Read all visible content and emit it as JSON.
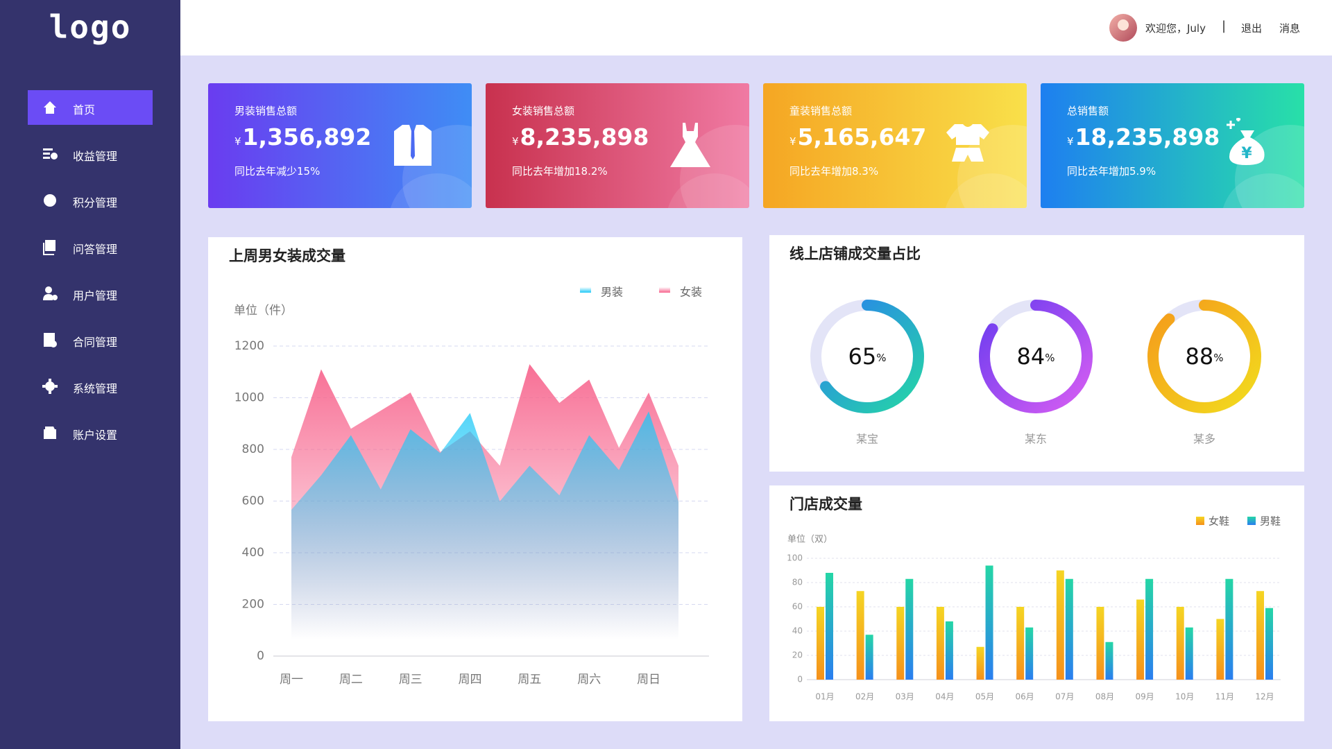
{
  "logo": "logo",
  "nav": [
    "首页",
    "收益管理",
    "积分管理",
    "问答管理",
    "用户管理",
    "合同管理",
    "系统管理",
    "账户设置"
  ],
  "nav_active": 0,
  "header": {
    "welcome": "欢迎您，July",
    "logout": "退出",
    "messages": "消息"
  },
  "cards": [
    {
      "title": "男装销售总额",
      "currency": "¥",
      "amount": "1,356,892",
      "note": "同比去年减少15%"
    },
    {
      "title": "女装销售总额",
      "currency": "¥",
      "amount": "8,235,898",
      "note": "同比去年增加18.2%"
    },
    {
      "title": "童装销售总额",
      "currency": "¥",
      "amount": "5,165,647",
      "note": "同比去年增加8.3%"
    },
    {
      "title": "总销售额",
      "currency": "¥",
      "amount": "18,235,898",
      "note": "同比去年增加5.9%"
    }
  ],
  "chart_data": [
    {
      "type": "area",
      "title": "上周男女装成交量",
      "unit_label": "单位（件）",
      "categories": [
        "周一",
        null,
        "周二",
        null,
        "周三",
        null,
        "周四",
        null,
        "周五",
        null,
        "周六",
        null,
        "周日",
        null
      ],
      "series": [
        {
          "name": "男装",
          "color": "#1ec8f7",
          "values": [
            566,
            700,
            855,
            645,
            878,
            786,
            941,
            599,
            737,
            622,
            855,
            720,
            947,
            599
          ]
        },
        {
          "name": "女装",
          "color": "#f7638c",
          "values": [
            770,
            1110,
            880,
            950,
            1020,
            790,
            870,
            737,
            1130,
            980,
            1070,
            806,
            1020,
            737
          ]
        }
      ],
      "ylim": [
        0,
        1200
      ],
      "yticks": [
        0,
        200,
        400,
        600,
        800,
        1000,
        1200
      ],
      "grid": true
    },
    {
      "type": "donut",
      "title": "线上店铺成交量占比",
      "categories": [
        "某宝",
        "某东",
        "某多"
      ],
      "values": [
        65,
        84,
        88
      ],
      "unit": "%",
      "colors": [
        [
          "#2a7ef0",
          "#25d6a6"
        ],
        [
          "#6a3cf0",
          "#d75ef2"
        ],
        [
          "#f59a1b",
          "#f2dc1e"
        ]
      ]
    },
    {
      "type": "bar",
      "title": "门店成交量",
      "unit_label": "单位（双）",
      "categories": [
        "01月",
        "02月",
        "03月",
        "04月",
        "05月",
        "06月",
        "07月",
        "08月",
        "09月",
        "10月",
        "11月",
        "12月"
      ],
      "series": [
        {
          "name": "女鞋",
          "color": [
            "#f5d523",
            "#f5901b"
          ],
          "values": [
            60,
            73,
            60,
            60,
            27,
            60,
            90,
            60,
            66,
            60,
            50,
            73
          ]
        },
        {
          "name": "男鞋",
          "color": [
            "#25d6a6",
            "#2a7ef0"
          ],
          "values": [
            88,
            37,
            83,
            48,
            94,
            43,
            83,
            31,
            83,
            43,
            83,
            59
          ]
        }
      ],
      "ylim": [
        0,
        100
      ],
      "yticks": [
        0,
        20,
        40,
        60,
        80,
        100
      ],
      "grid": true
    }
  ]
}
